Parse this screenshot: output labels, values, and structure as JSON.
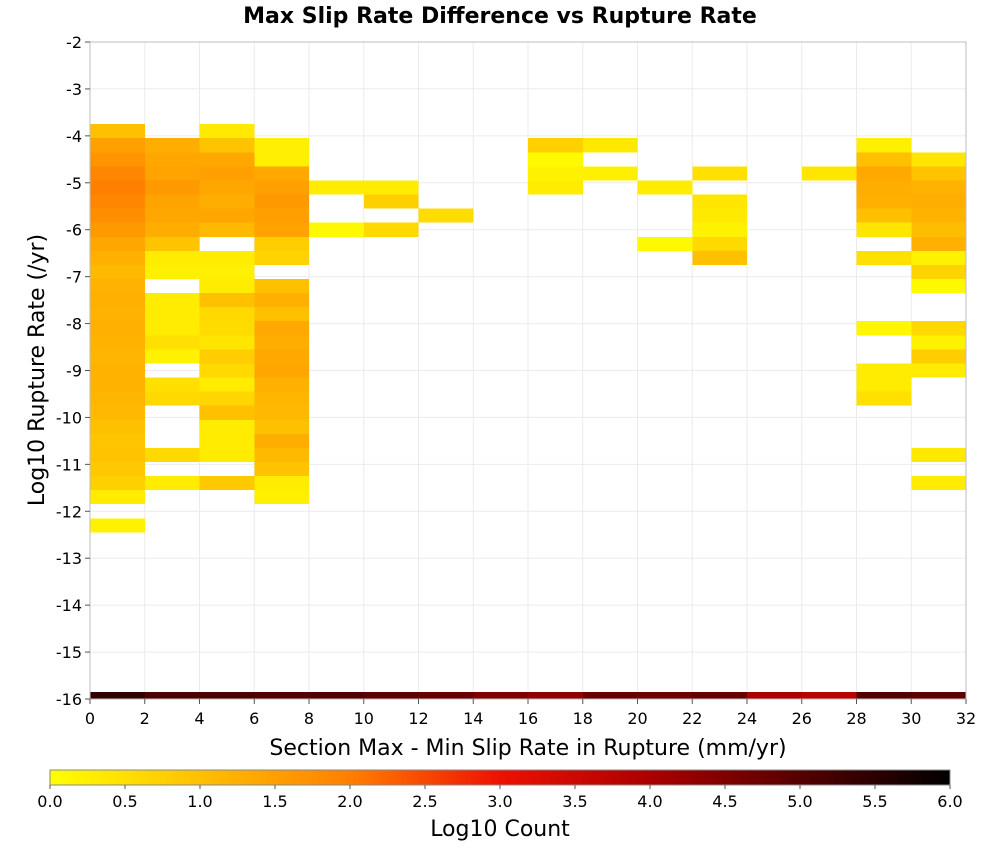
{
  "chart_data": {
    "type": "heatmap",
    "title": "Max Slip Rate Difference vs Rupture Rate",
    "xlabel": "Section Max - Min Slip Rate in Rupture (mm/yr)",
    "ylabel": "Log10 Rupture Rate (/yr)",
    "xlim": [
      0,
      32
    ],
    "ylim": [
      -16,
      -2
    ],
    "x_ticks": [
      0,
      2,
      4,
      6,
      8,
      10,
      12,
      14,
      16,
      18,
      20,
      22,
      24,
      26,
      28,
      30,
      32
    ],
    "x_tick_labels": [
      "0",
      "2",
      "4",
      "6",
      "8",
      "10",
      "12",
      "14",
      "16",
      "18",
      "20",
      "22",
      "24",
      "26",
      "28",
      "30",
      "32"
    ],
    "y_ticks": [
      -2,
      -3,
      -4,
      -5,
      -6,
      -7,
      -8,
      -9,
      -10,
      -11,
      -12,
      -13,
      -14,
      -15,
      -16
    ],
    "y_tick_labels": [
      "-2",
      "-3",
      "-4",
      "-5",
      "-6",
      "-7",
      "-8",
      "-9",
      "-10",
      "-11",
      "-12",
      "-13",
      "-14",
      "-15",
      "-16"
    ],
    "grid": true,
    "bin_width_x": 2,
    "bin_height_y": 0.3,
    "colorscale": {
      "title": "Log10 Count",
      "min": 0,
      "max": 6,
      "ticks": [
        "0.0",
        "0.5",
        "1.0",
        "1.5",
        "2.0",
        "2.5",
        "3.0",
        "3.5",
        "4.0",
        "4.5",
        "5.0",
        "5.5",
        "6.0"
      ],
      "stops": [
        {
          "v": 0.0,
          "color": "#ffff00"
        },
        {
          "v": 1.0,
          "color": "#ffc000"
        },
        {
          "v": 2.0,
          "color": "#ff7f00"
        },
        {
          "v": 3.0,
          "color": "#ee1100"
        },
        {
          "v": 4.0,
          "color": "#aa0000"
        },
        {
          "v": 5.0,
          "color": "#550000"
        },
        {
          "v": 6.0,
          "color": "#000000"
        }
      ]
    },
    "columns": [
      {
        "x": 0,
        "cells": [
          {
            "y": -3.9,
            "v": 1.0
          },
          {
            "y": -4.2,
            "v": 1.5
          },
          {
            "y": -4.5,
            "v": 1.7
          },
          {
            "y": -4.8,
            "v": 1.9
          },
          {
            "y": -5.1,
            "v": 2.0
          },
          {
            "y": -5.4,
            "v": 1.9
          },
          {
            "y": -5.7,
            "v": 1.75
          },
          {
            "y": -6.0,
            "v": 1.6
          },
          {
            "y": -6.3,
            "v": 1.4
          },
          {
            "y": -6.6,
            "v": 1.25
          },
          {
            "y": -6.9,
            "v": 1.1
          },
          {
            "y": -7.2,
            "v": 1.2
          },
          {
            "y": -7.5,
            "v": 1.25
          },
          {
            "y": -7.8,
            "v": 1.2
          },
          {
            "y": -8.1,
            "v": 1.25
          },
          {
            "y": -8.4,
            "v": 1.2
          },
          {
            "y": -8.7,
            "v": 1.15
          },
          {
            "y": -9.0,
            "v": 1.2
          },
          {
            "y": -9.3,
            "v": 1.2
          },
          {
            "y": -9.6,
            "v": 1.15
          },
          {
            "y": -9.9,
            "v": 1.1
          },
          {
            "y": -10.2,
            "v": 1.0
          },
          {
            "y": -10.5,
            "v": 0.9
          },
          {
            "y": -10.8,
            "v": 0.95
          },
          {
            "y": -11.1,
            "v": 0.85
          },
          {
            "y": -11.4,
            "v": 0.75
          },
          {
            "y": -11.7,
            "v": 0.3
          },
          {
            "y": -12.3,
            "v": 0.2
          }
        ]
      },
      {
        "x": 2,
        "cells": [
          {
            "y": -4.2,
            "v": 1.3
          },
          {
            "y": -4.5,
            "v": 1.4
          },
          {
            "y": -4.8,
            "v": 1.45
          },
          {
            "y": -5.1,
            "v": 1.6
          },
          {
            "y": -5.4,
            "v": 1.45
          },
          {
            "y": -5.7,
            "v": 1.4
          },
          {
            "y": -6.0,
            "v": 1.3
          },
          {
            "y": -6.3,
            "v": 0.95
          },
          {
            "y": -6.6,
            "v": 0.3
          },
          {
            "y": -6.9,
            "v": 0.25
          },
          {
            "y": -7.5,
            "v": 0.3
          },
          {
            "y": -7.8,
            "v": 0.3
          },
          {
            "y": -8.1,
            "v": 0.3
          },
          {
            "y": -8.4,
            "v": 0.5
          },
          {
            "y": -8.7,
            "v": 0.2
          },
          {
            "y": -9.3,
            "v": 0.5
          },
          {
            "y": -9.6,
            "v": 0.6
          },
          {
            "y": -10.8,
            "v": 0.6
          },
          {
            "y": -11.4,
            "v": 0.3
          }
        ]
      },
      {
        "x": 4,
        "cells": [
          {
            "y": -3.9,
            "v": 0.35
          },
          {
            "y": -4.2,
            "v": 0.95
          },
          {
            "y": -4.5,
            "v": 1.35
          },
          {
            "y": -4.8,
            "v": 1.5
          },
          {
            "y": -5.1,
            "v": 1.4
          },
          {
            "y": -5.4,
            "v": 1.3
          },
          {
            "y": -5.7,
            "v": 1.4
          },
          {
            "y": -6.0,
            "v": 1.1
          },
          {
            "y": -6.6,
            "v": 0.3
          },
          {
            "y": -6.9,
            "v": 0.25
          },
          {
            "y": -7.2,
            "v": 0.3
          },
          {
            "y": -7.5,
            "v": 1.0
          },
          {
            "y": -7.8,
            "v": 0.6
          },
          {
            "y": -8.1,
            "v": 0.55
          },
          {
            "y": -8.4,
            "v": 0.4
          },
          {
            "y": -8.7,
            "v": 0.8
          },
          {
            "y": -9.0,
            "v": 0.6
          },
          {
            "y": -9.3,
            "v": 0.3
          },
          {
            "y": -9.6,
            "v": 0.65
          },
          {
            "y": -9.9,
            "v": 1.0
          },
          {
            "y": -10.2,
            "v": 0.3
          },
          {
            "y": -10.5,
            "v": 0.3
          },
          {
            "y": -10.8,
            "v": 0.3
          },
          {
            "y": -11.4,
            "v": 0.85
          }
        ]
      },
      {
        "x": 6,
        "cells": [
          {
            "y": -4.2,
            "v": 0.25
          },
          {
            "y": -4.5,
            "v": 0.25
          },
          {
            "y": -4.8,
            "v": 1.35
          },
          {
            "y": -5.1,
            "v": 1.5
          },
          {
            "y": -5.4,
            "v": 1.6
          },
          {
            "y": -5.7,
            "v": 1.5
          },
          {
            "y": -6.0,
            "v": 1.45
          },
          {
            "y": -6.3,
            "v": 0.8
          },
          {
            "y": -6.6,
            "v": 0.7
          },
          {
            "y": -7.2,
            "v": 1.0
          },
          {
            "y": -7.5,
            "v": 1.25
          },
          {
            "y": -7.8,
            "v": 1.0
          },
          {
            "y": -8.1,
            "v": 1.35
          },
          {
            "y": -8.4,
            "v": 1.3
          },
          {
            "y": -8.7,
            "v": 1.35
          },
          {
            "y": -9.0,
            "v": 1.4
          },
          {
            "y": -9.3,
            "v": 1.25
          },
          {
            "y": -9.6,
            "v": 1.15
          },
          {
            "y": -9.9,
            "v": 1.1
          },
          {
            "y": -10.2,
            "v": 1.0
          },
          {
            "y": -10.5,
            "v": 1.3
          },
          {
            "y": -10.8,
            "v": 1.1
          },
          {
            "y": -11.1,
            "v": 0.95
          },
          {
            "y": -11.4,
            "v": 0.3
          },
          {
            "y": -11.7,
            "v": 0.25
          }
        ]
      },
      {
        "x": 8,
        "cells": [
          {
            "y": -5.1,
            "v": 0.3
          },
          {
            "y": -6.0,
            "v": 0.1
          }
        ]
      },
      {
        "x": 10,
        "cells": [
          {
            "y": -5.1,
            "v": 0.3
          },
          {
            "y": -5.4,
            "v": 0.75
          },
          {
            "y": -6.0,
            "v": 0.6
          }
        ]
      },
      {
        "x": 12,
        "cells": [
          {
            "y": -5.7,
            "v": 0.55
          }
        ]
      },
      {
        "x": 16,
        "cells": [
          {
            "y": -4.2,
            "v": 0.75
          },
          {
            "y": -4.5,
            "v": 0.1
          },
          {
            "y": -4.8,
            "v": 0.2
          },
          {
            "y": -5.1,
            "v": 0.3
          }
        ]
      },
      {
        "x": 18,
        "cells": [
          {
            "y": -4.2,
            "v": 0.35
          },
          {
            "y": -4.8,
            "v": 0.25
          }
        ]
      },
      {
        "x": 20,
        "cells": [
          {
            "y": -5.1,
            "v": 0.3
          },
          {
            "y": -6.3,
            "v": 0.1
          }
        ]
      },
      {
        "x": 22,
        "cells": [
          {
            "y": -4.8,
            "v": 0.5
          },
          {
            "y": -5.4,
            "v": 0.4
          },
          {
            "y": -5.7,
            "v": 0.35
          },
          {
            "y": -6.0,
            "v": 0.2
          },
          {
            "y": -6.3,
            "v": 0.6
          },
          {
            "y": -6.6,
            "v": 1.0
          }
        ]
      },
      {
        "x": 26,
        "cells": [
          {
            "y": -4.8,
            "v": 0.4
          }
        ]
      },
      {
        "x": 28,
        "cells": [
          {
            "y": -4.2,
            "v": 0.25
          },
          {
            "y": -4.5,
            "v": 1.0
          },
          {
            "y": -4.8,
            "v": 1.35
          },
          {
            "y": -5.1,
            "v": 1.3
          },
          {
            "y": -5.4,
            "v": 1.25
          },
          {
            "y": -5.7,
            "v": 1.0
          },
          {
            "y": -6.0,
            "v": 0.4
          },
          {
            "y": -6.6,
            "v": 0.5
          },
          {
            "y": -8.1,
            "v": 0.15
          },
          {
            "y": -9.0,
            "v": 0.3
          },
          {
            "y": -9.3,
            "v": 0.3
          },
          {
            "y": -9.6,
            "v": 0.5
          }
        ]
      },
      {
        "x": 30,
        "cells": [
          {
            "y": -4.5,
            "v": 0.4
          },
          {
            "y": -4.8,
            "v": 0.95
          },
          {
            "y": -5.1,
            "v": 1.2
          },
          {
            "y": -5.4,
            "v": 1.3
          },
          {
            "y": -5.7,
            "v": 1.2
          },
          {
            "y": -6.0,
            "v": 1.05
          },
          {
            "y": -6.3,
            "v": 1.25
          },
          {
            "y": -6.6,
            "v": 0.2
          },
          {
            "y": -6.9,
            "v": 0.7
          },
          {
            "y": -7.2,
            "v": 0.1
          },
          {
            "y": -8.1,
            "v": 0.6
          },
          {
            "y": -8.4,
            "v": 0.2
          },
          {
            "y": -8.7,
            "v": 0.8
          },
          {
            "y": -9.0,
            "v": 0.3
          },
          {
            "y": -10.8,
            "v": 0.35
          },
          {
            "y": -11.4,
            "v": 0.3
          }
        ]
      }
    ],
    "bottom_row": {
      "y": -16,
      "cells": [
        {
          "x": 0,
          "v": 5.4
        },
        {
          "x": 2,
          "v": 5.1
        },
        {
          "x": 4,
          "v": 5.1
        },
        {
          "x": 6,
          "v": 5.0
        },
        {
          "x": 8,
          "v": 5.0
        },
        {
          "x": 10,
          "v": 4.9
        },
        {
          "x": 12,
          "v": 4.8
        },
        {
          "x": 14,
          "v": 4.5
        },
        {
          "x": 16,
          "v": 4.3
        },
        {
          "x": 18,
          "v": 4.8
        },
        {
          "x": 20,
          "v": 4.7
        },
        {
          "x": 22,
          "v": 4.8
        },
        {
          "x": 24,
          "v": 4.0
        },
        {
          "x": 26,
          "v": 3.8
        },
        {
          "x": 28,
          "v": 5.0
        },
        {
          "x": 30,
          "v": 4.9
        }
      ]
    }
  }
}
